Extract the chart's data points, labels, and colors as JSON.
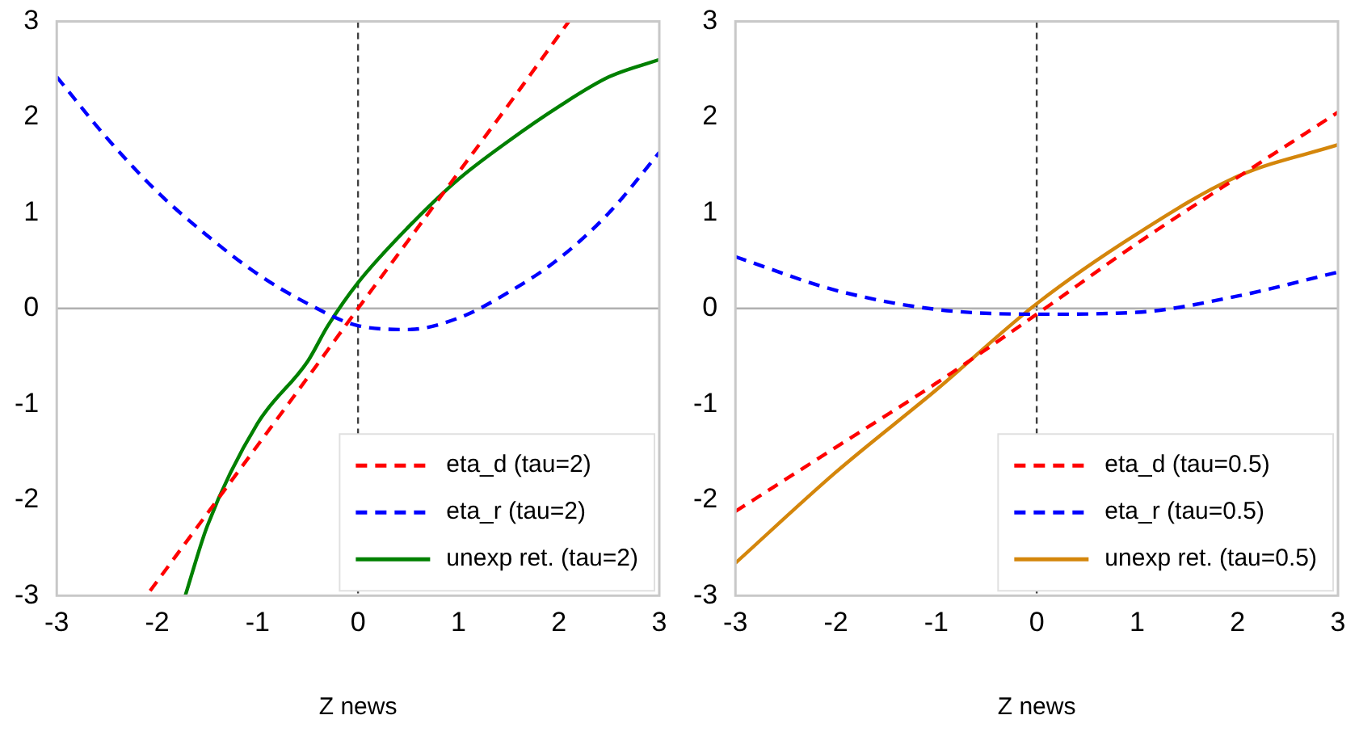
{
  "chart_data": [
    {
      "type": "line",
      "xlabel": "Z news",
      "xlim": [
        -3,
        3
      ],
      "ylim": [
        -3,
        3
      ],
      "xticks": [
        -3,
        -2,
        -1,
        0,
        1,
        2,
        3
      ],
      "yticks": [
        -3,
        -2,
        -1,
        0,
        1,
        2,
        3
      ],
      "grid": false,
      "legend": "bottom right",
      "marker": "none",
      "ref_lines": [
        {
          "axis": "x",
          "value": 0,
          "color": "#404040",
          "line_style": "dashed"
        },
        {
          "axis": "y",
          "value": 0,
          "color": "#b0b0b0",
          "line_style": "solid"
        }
      ],
      "series": [
        {
          "name": "eta_d (tau=2)",
          "color": "#ff0000",
          "line_style": "dashed",
          "x": [
            -2.07,
            -1.5,
            -1,
            -0.5,
            0,
            0.5,
            1,
            1.5,
            2.1
          ],
          "values": [
            -2.95,
            -2.14,
            -1.43,
            -0.72,
            0,
            0.71,
            1.42,
            2.13,
            3
          ]
        },
        {
          "name": "eta_r (tau=2)",
          "color": "#0000ff",
          "line_style": "dashed",
          "x": [
            -3,
            -2.5,
            -2,
            -1.5,
            -1,
            -0.5,
            0,
            0.5,
            1,
            1.5,
            2,
            2.5,
            3
          ],
          "values": [
            2.42,
            1.78,
            1.22,
            0.76,
            0.36,
            0.05,
            -0.18,
            -0.22,
            -0.1,
            0.17,
            0.52,
            1,
            1.63
          ]
        },
        {
          "name": "unexp ret. (tau=2)",
          "color": "#008000",
          "line_style": "solid",
          "x": [
            -1.72,
            -1.5,
            -1,
            -0.5,
            -0.3,
            0,
            0.5,
            1,
            1.5,
            2,
            2.5,
            3
          ],
          "values": [
            -3,
            -2.27,
            -1.2,
            -0.55,
            -0.18,
            0.27,
            0.85,
            1.35,
            1.75,
            2.11,
            2.42,
            2.6
          ]
        }
      ]
    },
    {
      "type": "line",
      "xlabel": "Z news",
      "xlim": [
        -3,
        3
      ],
      "ylim": [
        -3,
        3
      ],
      "xticks": [
        -3,
        -2,
        -1,
        0,
        1,
        2,
        3
      ],
      "yticks": [
        -3,
        -2,
        -1,
        0,
        1,
        2,
        3
      ],
      "grid": false,
      "legend": "bottom right",
      "marker": "none",
      "ref_lines": [
        {
          "axis": "x",
          "value": 0,
          "color": "#404040",
          "line_style": "dashed"
        },
        {
          "axis": "y",
          "value": 0,
          "color": "#b0b0b0",
          "line_style": "solid"
        }
      ],
      "series": [
        {
          "name": "eta_d (tau=0.5)",
          "color": "#ff0000",
          "line_style": "dashed",
          "x": [
            -3,
            -2,
            -1,
            0,
            1,
            2,
            3
          ],
          "values": [
            -2.12,
            -1.45,
            -0.78,
            -0.06,
            0.68,
            1.37,
            2.05
          ]
        },
        {
          "name": "eta_r (tau=0.5)",
          "color": "#0000ff",
          "line_style": "dashed",
          "x": [
            -3,
            -2,
            -1,
            0,
            1,
            2,
            3
          ],
          "values": [
            0.54,
            0.19,
            -0.01,
            -0.06,
            -0.04,
            0.13,
            0.38
          ]
        },
        {
          "name": "unexp ret. (tau=0.5)",
          "color": "#d4860b",
          "line_style": "solid",
          "x": [
            -3,
            -2,
            -1,
            0,
            1,
            2,
            3
          ],
          "values": [
            -2.66,
            -1.71,
            -0.85,
            0.05,
            0.78,
            1.38,
            1.71
          ]
        }
      ]
    }
  ]
}
